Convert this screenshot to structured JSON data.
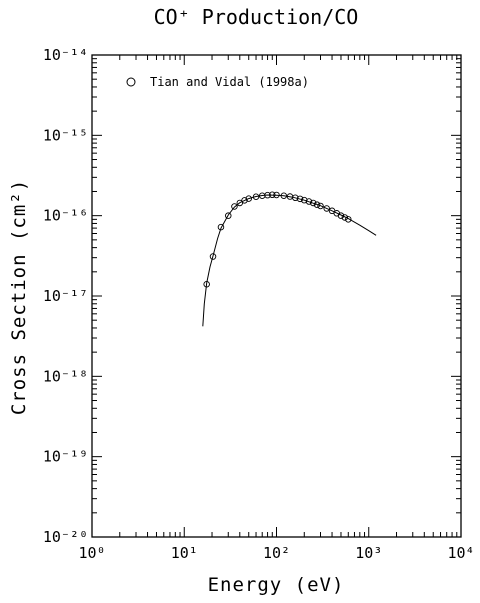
{
  "chart_data": {
    "type": "scatter",
    "title": "CO⁺ Production/CO",
    "xlabel": "Energy (eV)",
    "ylabel": "Cross Section (cm²)",
    "x_scale": "log",
    "y_scale": "log",
    "xlim": [
      1,
      10000
    ],
    "ylim": [
      1e-20,
      1e-14
    ],
    "x_ticks": [
      "10⁰",
      "10¹",
      "10²",
      "10³",
      "10⁴"
    ],
    "y_ticks": [
      "10⁻²⁰",
      "10⁻¹⁹",
      "10⁻¹⁸",
      "10⁻¹⁷",
      "10⁻¹⁶",
      "10⁻¹⁵",
      "10⁻¹⁴"
    ],
    "legend": "top-left",
    "grid": false,
    "series": [
      {
        "name": "Tian and Vidal (1998a)",
        "marker": "circle",
        "points": [
          [
            17.5,
            1.4e-17
          ],
          [
            20.5,
            3.1e-17
          ],
          [
            25,
            7.2e-17
          ],
          [
            30,
            1e-16
          ],
          [
            35,
            1.3e-16
          ],
          [
            40,
            1.44e-16
          ],
          [
            45,
            1.55e-16
          ],
          [
            50,
            1.63e-16
          ],
          [
            60,
            1.72e-16
          ],
          [
            70,
            1.77e-16
          ],
          [
            80,
            1.8e-16
          ],
          [
            90,
            1.82e-16
          ],
          [
            100,
            1.81e-16
          ],
          [
            120,
            1.77e-16
          ],
          [
            140,
            1.73e-16
          ],
          [
            160,
            1.67e-16
          ],
          [
            180,
            1.62e-16
          ],
          [
            200,
            1.56e-16
          ],
          [
            225,
            1.5e-16
          ],
          [
            250,
            1.44e-16
          ],
          [
            275,
            1.37e-16
          ],
          [
            300,
            1.32e-16
          ],
          [
            350,
            1.23e-16
          ],
          [
            400,
            1.15e-16
          ],
          [
            450,
            1.07e-16
          ],
          [
            500,
            1e-16
          ],
          [
            550,
            9.5e-17
          ],
          [
            600,
            9e-17
          ]
        ]
      },
      {
        "type": "line",
        "points": [
          [
            15.9,
            4.2e-18
          ],
          [
            16.5,
            8e-18
          ],
          [
            17.5,
            1.45e-17
          ],
          [
            19,
            2.3e-17
          ],
          [
            20.5,
            3.15e-17
          ],
          [
            23,
            5.2e-17
          ],
          [
            25,
            7e-17
          ],
          [
            30,
            1.02e-16
          ],
          [
            35,
            1.28e-16
          ],
          [
            40,
            1.45e-16
          ],
          [
            50,
            1.63e-16
          ],
          [
            60,
            1.73e-16
          ],
          [
            70,
            1.78e-16
          ],
          [
            80,
            1.81e-16
          ],
          [
            100,
            1.8e-16
          ],
          [
            120,
            1.77e-16
          ],
          [
            150,
            1.7e-16
          ],
          [
            200,
            1.56e-16
          ],
          [
            300,
            1.33e-16
          ],
          [
            400,
            1.15e-16
          ],
          [
            500,
            1.02e-16
          ],
          [
            600,
            9.2e-17
          ],
          [
            800,
            7.6e-17
          ],
          [
            1000,
            6.5e-17
          ],
          [
            1200,
            5.7e-17
          ]
        ]
      }
    ]
  }
}
